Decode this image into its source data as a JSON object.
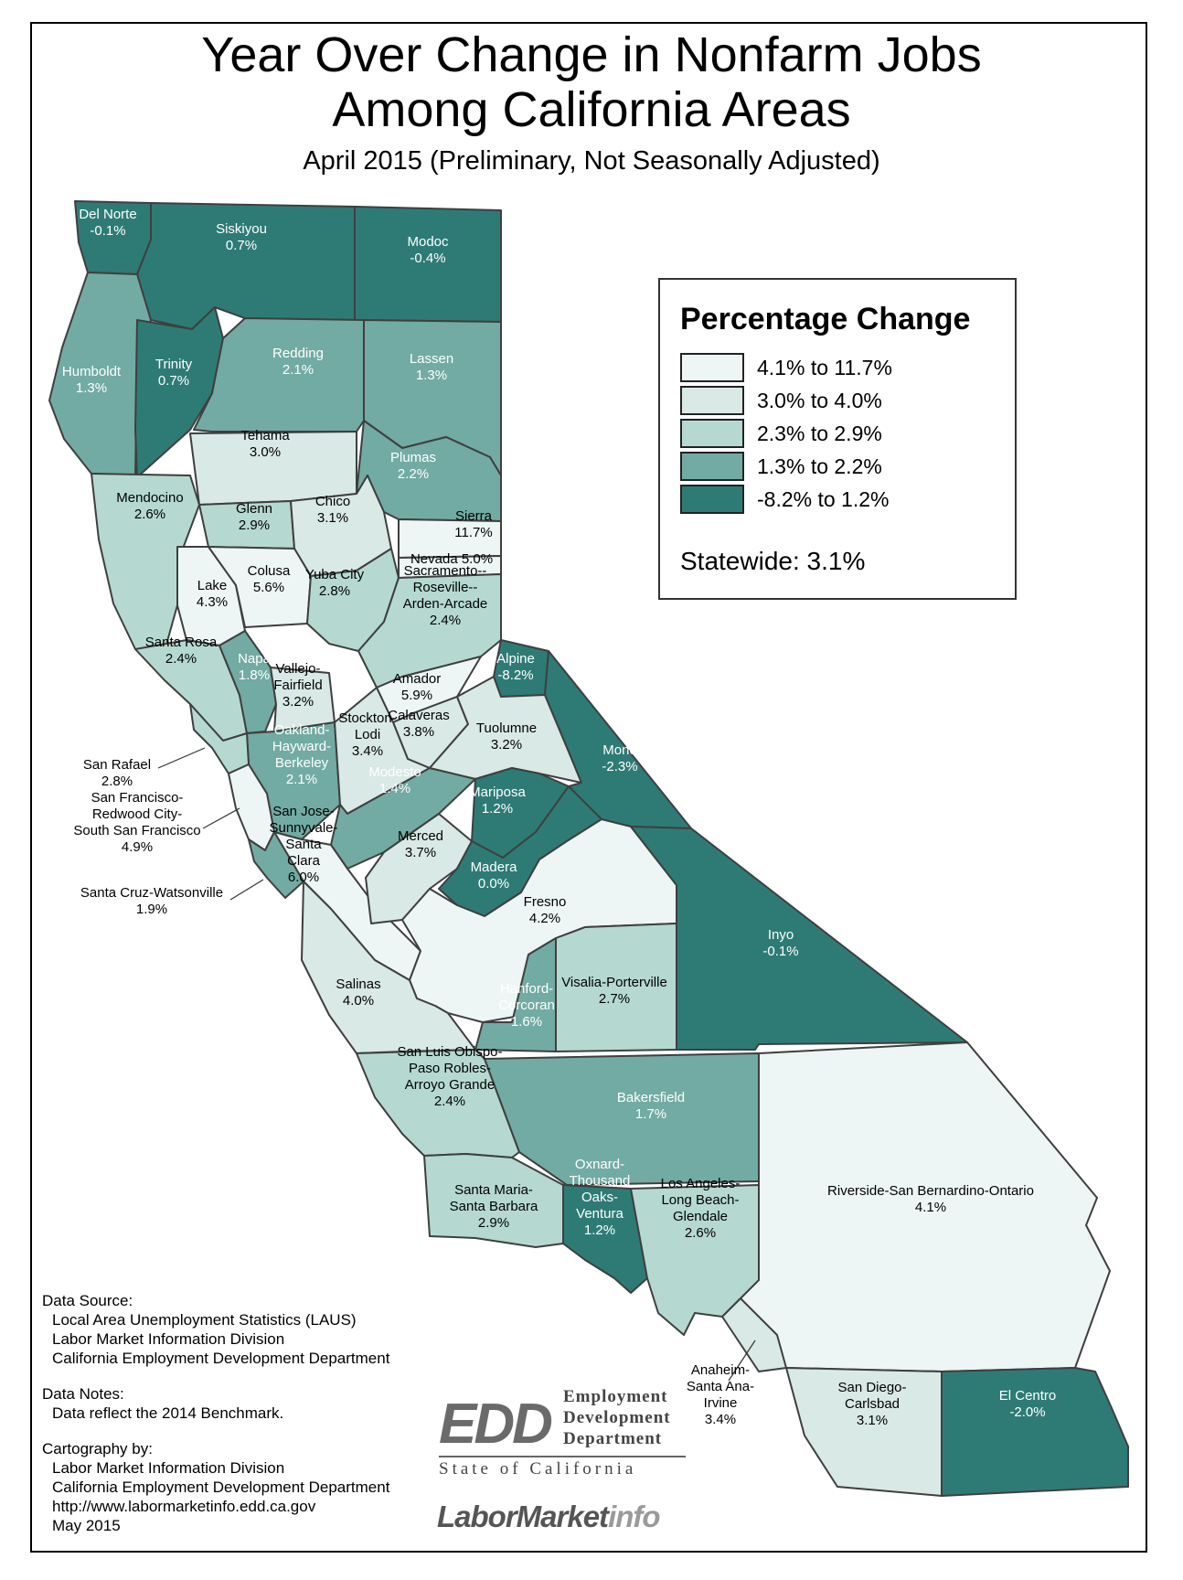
{
  "title_line1": "Year Over Change in Nonfarm Jobs",
  "title_line2": "Among California Areas",
  "subtitle": "April 2015 (Preliminary, Not Seasonally Adjusted)",
  "legend": {
    "title": "Percentage Change",
    "classes": [
      {
        "label": "4.1% to 11.7%",
        "color": "#eef6f5"
      },
      {
        "label": "3.0% to 4.0%",
        "color": "#d9e9e5"
      },
      {
        "label": "2.3% to 2.9%",
        "color": "#b5d9d0"
      },
      {
        "label": "1.3% to 2.2%",
        "color": "#72aba3"
      },
      {
        "label": "-8.2% to 1.2%",
        "color": "#2e7b76"
      }
    ],
    "statewide": "Statewide: 3.1%"
  },
  "areas": [
    {
      "id": "del-norte",
      "name": [
        "Del Norte"
      ],
      "value": "-0.1%",
      "cls": 4
    },
    {
      "id": "siskiyou",
      "name": [
        "Siskiyou"
      ],
      "value": "0.7%",
      "cls": 4
    },
    {
      "id": "modoc",
      "name": [
        "Modoc"
      ],
      "value": "-0.4%",
      "cls": 4
    },
    {
      "id": "humboldt",
      "name": [
        "Humboldt"
      ],
      "value": "1.3%",
      "cls": 3
    },
    {
      "id": "trinity",
      "name": [
        "Trinity"
      ],
      "value": "0.7%",
      "cls": 4
    },
    {
      "id": "redding",
      "name": [
        "Redding"
      ],
      "value": "2.1%",
      "cls": 3
    },
    {
      "id": "lassen",
      "name": [
        "Lassen"
      ],
      "value": "1.3%",
      "cls": 3
    },
    {
      "id": "tehama",
      "name": [
        "Tehama"
      ],
      "value": "3.0%",
      "cls": 1
    },
    {
      "id": "plumas",
      "name": [
        "Plumas"
      ],
      "value": "2.2%",
      "cls": 3
    },
    {
      "id": "mendocino",
      "name": [
        "Mendocino"
      ],
      "value": "2.6%",
      "cls": 2
    },
    {
      "id": "glenn",
      "name": [
        "Glenn"
      ],
      "value": "2.9%",
      "cls": 2
    },
    {
      "id": "chico",
      "name": [
        "Chico"
      ],
      "value": "3.1%",
      "cls": 1
    },
    {
      "id": "sierra",
      "name": [
        "Sierra"
      ],
      "value": "11.7%",
      "cls": 0
    },
    {
      "id": "nevada",
      "name": [
        "Nevada 5.0%"
      ],
      "value": "",
      "cls": 0
    },
    {
      "id": "lake",
      "name": [
        "Lake"
      ],
      "value": "4.3%",
      "cls": 0
    },
    {
      "id": "colusa",
      "name": [
        "Colusa"
      ],
      "value": "5.6%",
      "cls": 0
    },
    {
      "id": "yuba-city",
      "name": [
        "Yuba City"
      ],
      "value": "2.8%",
      "cls": 2
    },
    {
      "id": "sacramento",
      "name": [
        "Sacramento--",
        "Roseville--",
        "Arden-Arcade"
      ],
      "value": "2.4%",
      "cls": 2
    },
    {
      "id": "santa-rosa",
      "name": [
        "Santa Rosa"
      ],
      "value": "2.4%",
      "cls": 2
    },
    {
      "id": "napa",
      "name": [
        "Napa"
      ],
      "value": "1.8%",
      "cls": 3
    },
    {
      "id": "vallejo",
      "name": [
        "Vallejo-",
        "Fairfield"
      ],
      "value": "3.2%",
      "cls": 1
    },
    {
      "id": "alpine",
      "name": [
        "Alpine"
      ],
      "value": "-8.2%",
      "cls": 4
    },
    {
      "id": "amador",
      "name": [
        "Amador"
      ],
      "value": "5.9%",
      "cls": 0
    },
    {
      "id": "calaveras",
      "name": [
        "Calaveras"
      ],
      "value": "3.8%",
      "cls": 1
    },
    {
      "id": "tuolumne",
      "name": [
        "Tuolumne"
      ],
      "value": "3.2%",
      "cls": 1
    },
    {
      "id": "mono",
      "name": [
        "Mono"
      ],
      "value": "-2.3%",
      "cls": 4
    },
    {
      "id": "oakland",
      "name": [
        "Oakland-",
        "Hayward-",
        "Berkeley"
      ],
      "value": "2.1%",
      "cls": 3
    },
    {
      "id": "stockton",
      "name": [
        "Stockton-",
        "Lodi"
      ],
      "value": "3.4%",
      "cls": 1
    },
    {
      "id": "modesto",
      "name": [
        "Modesto"
      ],
      "value": "1.4%",
      "cls": 3
    },
    {
      "id": "mariposa",
      "name": [
        "Mariposa"
      ],
      "value": "1.2%",
      "cls": 4
    },
    {
      "id": "san-jose",
      "name": [
        "San Jose-",
        "Sunnyvale-",
        "Santa",
        "Clara"
      ],
      "value": "6.0%",
      "cls": 0
    },
    {
      "id": "merced",
      "name": [
        "Merced"
      ],
      "value": "3.7%",
      "cls": 1
    },
    {
      "id": "madera",
      "name": [
        "Madera"
      ],
      "value": "0.0%",
      "cls": 4
    },
    {
      "id": "fresno",
      "name": [
        "Fresno"
      ],
      "value": "4.2%",
      "cls": 0
    },
    {
      "id": "inyo",
      "name": [
        "Inyo"
      ],
      "value": "-0.1%",
      "cls": 4
    },
    {
      "id": "salinas",
      "name": [
        "Salinas"
      ],
      "value": "4.0%",
      "cls": 1
    },
    {
      "id": "hanford",
      "name": [
        "Hanford-",
        "Corcoran"
      ],
      "value": "1.6%",
      "cls": 3
    },
    {
      "id": "visalia",
      "name": [
        "Visalia-Porterville"
      ],
      "value": "2.7%",
      "cls": 2
    },
    {
      "id": "slo",
      "name": [
        "San Luis Obispo-",
        "Paso Robles-",
        "Arroyo Grande"
      ],
      "value": "2.4%",
      "cls": 2
    },
    {
      "id": "bakersfield",
      "name": [
        "Bakersfield"
      ],
      "value": "1.7%",
      "cls": 3
    },
    {
      "id": "riverside",
      "name": [
        "Riverside-San Bernardino-Ontario"
      ],
      "value": "4.1%",
      "cls": 0
    },
    {
      "id": "santa-maria",
      "name": [
        "Santa Maria-",
        "Santa Barbara"
      ],
      "value": "2.9%",
      "cls": 2
    },
    {
      "id": "oxnard",
      "name": [
        "Oxnard-",
        "Thousand",
        "Oaks-",
        "Ventura"
      ],
      "value": "1.2%",
      "cls": 4
    },
    {
      "id": "los-angeles",
      "name": [
        "Los Angeles-",
        "Long Beach-",
        "Glendale"
      ],
      "value": "2.6%",
      "cls": 2
    },
    {
      "id": "anaheim",
      "name": [
        "Anaheim-",
        "Santa Ana-",
        "Irvine"
      ],
      "value": "3.4%",
      "cls": 1
    },
    {
      "id": "san-diego",
      "name": [
        "San Diego-",
        "Carlsbad"
      ],
      "value": "3.1%",
      "cls": 1
    },
    {
      "id": "el-centro",
      "name": [
        "El Centro"
      ],
      "value": "-2.0%",
      "cls": 4
    },
    {
      "id": "san-rafael",
      "name": [
        "San Rafael"
      ],
      "value": "2.8%",
      "cls": 2
    },
    {
      "id": "san-francisco",
      "name": [
        "San Francisco-",
        "Redwood City-",
        "South San Francisco"
      ],
      "value": "4.9%",
      "cls": 0
    },
    {
      "id": "santa-cruz",
      "name": [
        "Santa Cruz-Watsonville"
      ],
      "value": "1.9%",
      "cls": 3
    }
  ],
  "notes": {
    "source_heading": "Data Source:",
    "source_lines": [
      "Local Area Unemployment Statistics (LAUS)",
      "Labor Market Information Division",
      "California Employment Development Department"
    ],
    "notes_heading": "Data Notes:",
    "notes_lines": [
      "Data reflect the 2014 Benchmark."
    ],
    "carto_heading": "Cartography by:",
    "carto_lines": [
      "Labor Market Information Division",
      "California Employment Development Department",
      "http://www.labormarketinfo.edd.ca.gov",
      "May 2015"
    ]
  },
  "edd_logo": {
    "mark": "EDD",
    "words": [
      "Employment",
      "Development",
      "Department"
    ],
    "state": "State of California"
  },
  "lmi_logo": {
    "part1": "LaborMarket",
    "part2": "info"
  }
}
